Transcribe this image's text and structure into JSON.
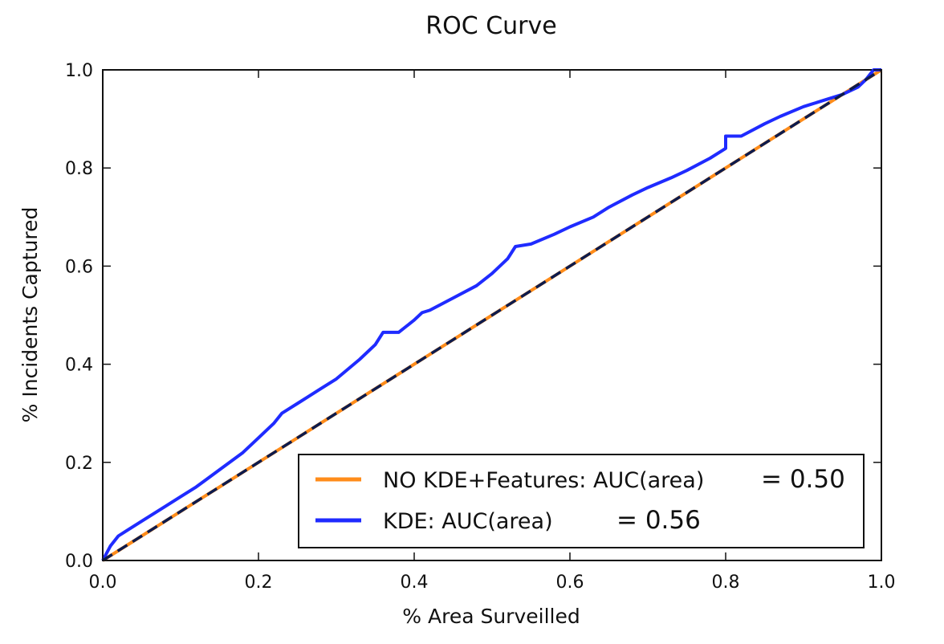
{
  "chart_data": {
    "type": "line",
    "title": "ROC Curve",
    "xlabel": "% Area Surveilled",
    "ylabel": "% Incidents Captured",
    "xlim": [
      0.0,
      1.0
    ],
    "ylim": [
      0.0,
      1.0
    ],
    "xticks": [
      "0.0",
      "0.2",
      "0.4",
      "0.6",
      "0.8",
      "1.0"
    ],
    "yticks": [
      "0.0",
      "0.2",
      "0.4",
      "0.6",
      "0.8",
      "1.0"
    ],
    "grid": false,
    "legend_position": "lower-right",
    "series": [
      {
        "name": "NO KDE+Features: AUC(area)",
        "auc": "= 0.50",
        "color": "#ff8c1a",
        "style": "solid",
        "x": [
          0.0,
          0.05,
          0.1,
          0.15,
          0.2,
          0.25,
          0.3,
          0.35,
          0.4,
          0.45,
          0.5,
          0.55,
          0.6,
          0.65,
          0.7,
          0.75,
          0.8,
          0.85,
          0.9,
          0.95,
          1.0
        ],
        "y": [
          0.0,
          0.05,
          0.1,
          0.15,
          0.2,
          0.25,
          0.3,
          0.35,
          0.4,
          0.45,
          0.5,
          0.55,
          0.6,
          0.65,
          0.7,
          0.75,
          0.8,
          0.85,
          0.9,
          0.95,
          1.0
        ]
      },
      {
        "name": "KDE: AUC(area)",
        "auc": "= 0.56",
        "color": "#1f2bff",
        "style": "solid",
        "x": [
          0.0,
          0.01,
          0.02,
          0.03,
          0.05,
          0.08,
          0.1,
          0.12,
          0.15,
          0.18,
          0.2,
          0.22,
          0.23,
          0.25,
          0.28,
          0.3,
          0.33,
          0.35,
          0.36,
          0.37,
          0.38,
          0.4,
          0.41,
          0.42,
          0.45,
          0.48,
          0.5,
          0.52,
          0.53,
          0.55,
          0.58,
          0.6,
          0.63,
          0.65,
          0.68,
          0.7,
          0.73,
          0.75,
          0.78,
          0.8,
          0.8,
          0.82,
          0.85,
          0.87,
          0.9,
          0.93,
          0.95,
          0.97,
          0.98,
          0.99,
          1.0
        ],
        "y": [
          0.0,
          0.03,
          0.05,
          0.06,
          0.08,
          0.11,
          0.13,
          0.15,
          0.185,
          0.22,
          0.25,
          0.28,
          0.3,
          0.32,
          0.35,
          0.37,
          0.41,
          0.44,
          0.465,
          0.465,
          0.465,
          0.49,
          0.505,
          0.51,
          0.535,
          0.56,
          0.585,
          0.615,
          0.64,
          0.645,
          0.665,
          0.68,
          0.7,
          0.72,
          0.745,
          0.76,
          0.78,
          0.795,
          0.82,
          0.84,
          0.865,
          0.865,
          0.89,
          0.905,
          0.925,
          0.94,
          0.95,
          0.965,
          0.98,
          1.0,
          1.0
        ]
      },
      {
        "name": "",
        "color": "#0d1b4d",
        "style": "dashed",
        "x": [
          0.0,
          1.0
        ],
        "y": [
          0.0,
          1.0
        ]
      }
    ]
  }
}
